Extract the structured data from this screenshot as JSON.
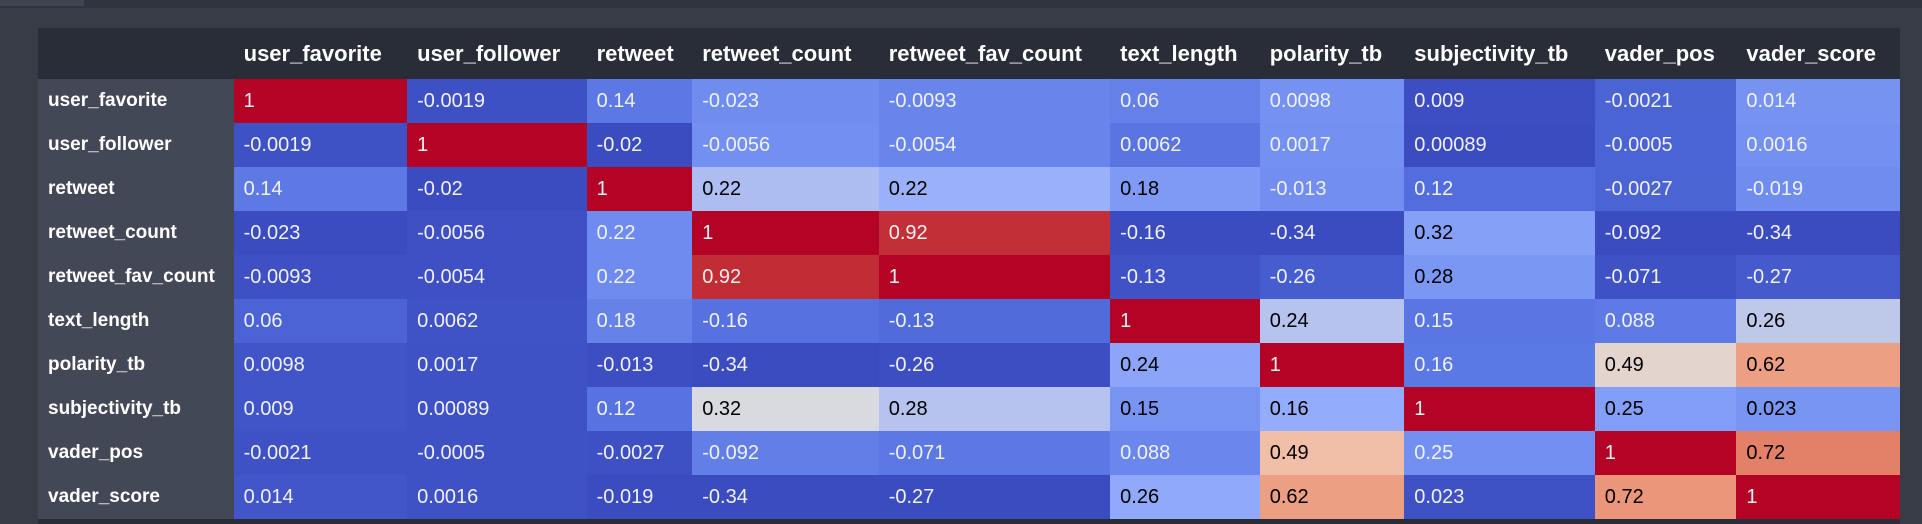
{
  "table": {
    "columns": [
      "user_favorite",
      "user_follower",
      "retweet",
      "retweet_count",
      "retweet_fav_count",
      "text_length",
      "polarity_tb",
      "subjectivity_tb",
      "vader_pos",
      "vader_score"
    ],
    "rows": [
      {
        "label": "user_favorite",
        "values": [
          "1",
          "-0.0019",
          "0.14",
          "-0.023",
          "-0.0093",
          "0.06",
          "0.0098",
          "0.009",
          "-0.0021",
          "0.014"
        ]
      },
      {
        "label": "user_follower",
        "values": [
          "-0.0019",
          "1",
          "-0.02",
          "-0.0056",
          "-0.0054",
          "0.0062",
          "0.0017",
          "0.00089",
          "-0.0005",
          "0.0016"
        ]
      },
      {
        "label": "retweet",
        "values": [
          "0.14",
          "-0.02",
          "1",
          "0.22",
          "0.22",
          "0.18",
          "-0.013",
          "0.12",
          "-0.0027",
          "-0.019"
        ]
      },
      {
        "label": "retweet_count",
        "values": [
          "-0.023",
          "-0.0056",
          "0.22",
          "1",
          "0.92",
          "-0.16",
          "-0.34",
          "0.32",
          "-0.092",
          "-0.34"
        ]
      },
      {
        "label": "retweet_fav_count",
        "values": [
          "-0.0093",
          "-0.0054",
          "0.22",
          "0.92",
          "1",
          "-0.13",
          "-0.26",
          "0.28",
          "-0.071",
          "-0.27"
        ]
      },
      {
        "label": "text_length",
        "values": [
          "0.06",
          "0.0062",
          "0.18",
          "-0.16",
          "-0.13",
          "1",
          "0.24",
          "0.15",
          "0.088",
          "0.26"
        ]
      },
      {
        "label": "polarity_tb",
        "values": [
          "0.0098",
          "0.0017",
          "-0.013",
          "-0.34",
          "-0.26",
          "0.24",
          "1",
          "0.16",
          "0.49",
          "0.62"
        ]
      },
      {
        "label": "subjectivity_tb",
        "values": [
          "0.009",
          "0.00089",
          "0.12",
          "0.32",
          "0.28",
          "0.15",
          "0.16",
          "1",
          "0.25",
          "0.023"
        ]
      },
      {
        "label": "vader_pos",
        "values": [
          "-0.0021",
          "-0.0005",
          "-0.0027",
          "-0.092",
          "-0.071",
          "0.088",
          "0.49",
          "0.25",
          "1",
          "0.72"
        ]
      },
      {
        "label": "vader_score",
        "values": [
          "0.014",
          "0.0016",
          "-0.019",
          "-0.34",
          "-0.27",
          "0.26",
          "0.62",
          "0.023",
          "0.72",
          "1"
        ]
      }
    ],
    "colormap": "coolwarm",
    "colors": {
      "min_blue": "#3b4cc0",
      "mid_gray": "#dddddd",
      "max_red": "#b40426",
      "page_bg": "#383c47",
      "header_bg": "#292d37",
      "row_header_bg": "#434856"
    }
  }
}
